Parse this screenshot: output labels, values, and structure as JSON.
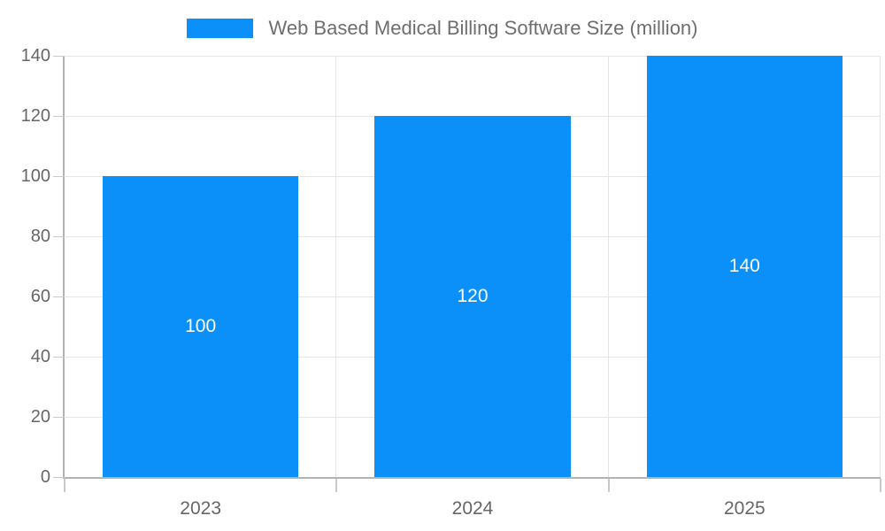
{
  "colors": {
    "bar": "#0b90fa",
    "bar_label": "#ffffff",
    "title_text": "#6e6e6e",
    "axis_text": "#666666",
    "gridline": "#e6e6e6",
    "axis_line": "#b3b3b3",
    "tick": "#c9c9c9",
    "background": "#ffffff"
  },
  "chart_data": {
    "type": "bar",
    "title": "Web Based Medical Billing Software Size (million)",
    "series": [
      {
        "name": "Web Based Medical Billing Software Size (million)",
        "values": [
          100,
          120,
          140
        ]
      }
    ],
    "categories": [
      "2023",
      "2024",
      "2025"
    ],
    "values": [
      100,
      120,
      140
    ],
    "bar_labels": [
      "100",
      "120",
      "140"
    ],
    "xlabel": "",
    "ylabel": "",
    "ylim": [
      0,
      140
    ],
    "yticks": [
      0,
      20,
      40,
      60,
      80,
      100,
      120,
      140
    ],
    "grid": true,
    "legend_position": "top-center",
    "bar_label_position": "center-inside"
  }
}
